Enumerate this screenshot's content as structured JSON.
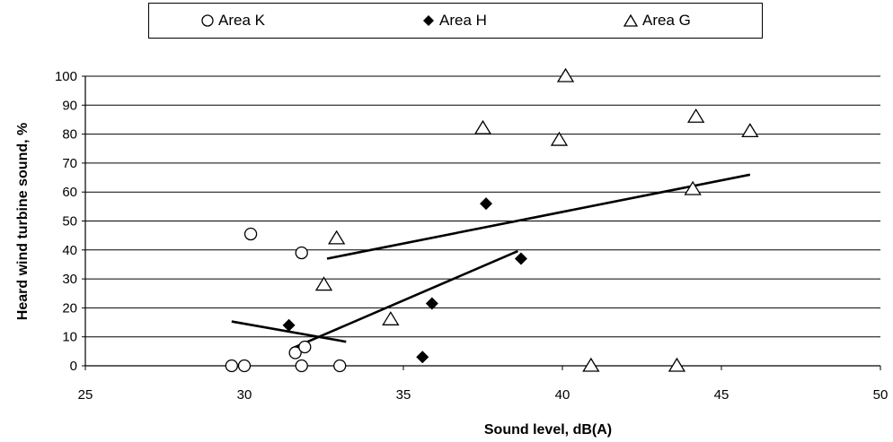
{
  "chart_data": {
    "type": "scatter",
    "title": "",
    "xlabel": "Sound level, dB(A)",
    "ylabel": "Heard wind turbine sound, %",
    "xlim": [
      25,
      50
    ],
    "ylim": [
      0,
      100
    ],
    "x_ticks": [
      25,
      30,
      35,
      40,
      45,
      50
    ],
    "y_ticks": [
      0,
      10,
      20,
      30,
      40,
      50,
      60,
      70,
      80,
      90,
      100
    ],
    "grid": "horizontal",
    "legend_position": "top",
    "series": [
      {
        "name": "Area K",
        "marker": "circle-open",
        "points": [
          [
            29.6,
            0
          ],
          [
            30.0,
            0
          ],
          [
            31.8,
            0
          ],
          [
            33.0,
            0
          ],
          [
            31.6,
            4.5
          ],
          [
            31.9,
            6.5
          ],
          [
            30.2,
            45.5
          ],
          [
            31.8,
            39
          ]
        ],
        "trendline": [
          [
            29.6,
            15.3
          ],
          [
            33.2,
            8.3
          ]
        ]
      },
      {
        "name": "Area H",
        "marker": "diamond-filled",
        "points": [
          [
            31.4,
            14
          ],
          [
            35.6,
            3
          ],
          [
            35.9,
            21.5
          ],
          [
            37.6,
            56
          ],
          [
            38.7,
            37
          ]
        ],
        "trendline": [
          [
            31.5,
            6
          ],
          [
            38.6,
            39.6
          ]
        ]
      },
      {
        "name": "Area G",
        "marker": "triangle-open",
        "points": [
          [
            40.1,
            100
          ],
          [
            37.5,
            82
          ],
          [
            39.9,
            78
          ],
          [
            44.2,
            86
          ],
          [
            45.9,
            81
          ],
          [
            44.1,
            61
          ],
          [
            32.9,
            44
          ],
          [
            32.5,
            28
          ],
          [
            34.6,
            16
          ],
          [
            40.9,
            0
          ],
          [
            43.6,
            0
          ]
        ],
        "trendline": [
          [
            32.6,
            37
          ],
          [
            45.9,
            66
          ]
        ]
      }
    ]
  }
}
